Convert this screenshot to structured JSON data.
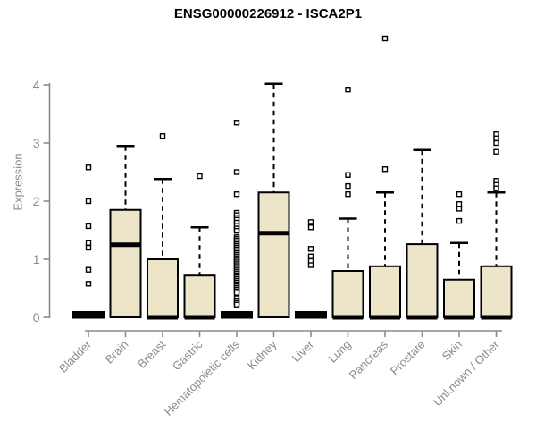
{
  "chart_data": {
    "type": "boxplot",
    "title": "ENSG00000226912 - ISCA2P1",
    "ylabel": "Expression",
    "xlabel": "",
    "ylim": [
      0,
      4
    ],
    "yticks": [
      "0",
      "1",
      "2",
      "3",
      "4"
    ],
    "grid": false,
    "legend": false,
    "colors": {
      "box_fill": "#EDE5C9",
      "box_stroke": "#000000",
      "median_color": "#000000",
      "outlier_stroke": "#000000",
      "axis": "#8A8A8A",
      "title_color": "#000000",
      "background": "#FFFFFF"
    },
    "categories": [
      "Bladder",
      "Brain",
      "Breast",
      "Gastric",
      "Hematopoietic cells",
      "Kidney",
      "Liver",
      "Lung",
      "Pancreas",
      "Prostate",
      "Skin",
      "Unknown / Other"
    ],
    "boxes": [
      {
        "category": "Bladder",
        "q1": 0,
        "median": 0,
        "q3": 0,
        "whisker_low": 0,
        "whisker_high": 0,
        "outliers": [
          2.58,
          2.0,
          1.57,
          1.28,
          1.2,
          0.82,
          0.58
        ]
      },
      {
        "category": "Brain",
        "q1": 0,
        "median": 1.25,
        "q3": 1.85,
        "whisker_low": 0,
        "whisker_high": 2.95,
        "outliers": []
      },
      {
        "category": "Breast",
        "q1": 0,
        "median": 0,
        "q3": 1.0,
        "whisker_low": 0,
        "whisker_high": 2.38,
        "outliers": [
          3.12
        ]
      },
      {
        "category": "Gastric",
        "q1": 0,
        "median": 0,
        "q3": 0.72,
        "whisker_low": 0,
        "whisker_high": 1.55,
        "outliers": [
          2.43
        ]
      },
      {
        "category": "Hematopoietic cells",
        "q1": 0,
        "median": 0,
        "q3": 0,
        "whisker_low": 0,
        "whisker_high": 0,
        "outliers": [
          3.35,
          2.5,
          2.12,
          1.8,
          1.76,
          1.72,
          1.68,
          1.63,
          1.58,
          1.53,
          1.49,
          1.38,
          1.35,
          1.32,
          1.29,
          1.26,
          1.23,
          1.2,
          1.17,
          1.14,
          1.11,
          1.08,
          1.05,
          1.02,
          0.99,
          0.96,
          0.93,
          0.9,
          0.87,
          0.84,
          0.81,
          0.78,
          0.75,
          0.72,
          0.69,
          0.66,
          0.63,
          0.6,
          0.57,
          0.54,
          0.51,
          0.48,
          0.45,
          0.42,
          0.33,
          0.29,
          0.25,
          0.22
        ]
      },
      {
        "category": "Kidney",
        "q1": 0,
        "median": 1.45,
        "q3": 2.15,
        "whisker_low": 0,
        "whisker_high": 4.02,
        "outliers": []
      },
      {
        "category": "Liver",
        "q1": 0,
        "median": 0,
        "q3": 0,
        "whisker_low": 0,
        "whisker_high": 0,
        "outliers": [
          1.64,
          1.55,
          1.18,
          1.05,
          0.97,
          0.9
        ]
      },
      {
        "category": "Lung",
        "q1": 0,
        "median": 0,
        "q3": 0.8,
        "whisker_low": 0,
        "whisker_high": 1.7,
        "outliers": [
          3.92,
          2.45,
          2.26,
          2.12
        ]
      },
      {
        "category": "Pancreas",
        "q1": 0,
        "median": 0,
        "q3": 0.88,
        "whisker_low": 0,
        "whisker_high": 2.15,
        "outliers": [
          4.8,
          2.55
        ]
      },
      {
        "category": "Prostate",
        "q1": 0,
        "median": 0,
        "q3": 1.26,
        "whisker_low": 0,
        "whisker_high": 2.88,
        "outliers": []
      },
      {
        "category": "Skin",
        "q1": 0,
        "median": 0,
        "q3": 0.65,
        "whisker_low": 0,
        "whisker_high": 1.28,
        "outliers": [
          2.12,
          1.95,
          1.87,
          1.66
        ]
      },
      {
        "category": "Unknown / Other",
        "q1": 0,
        "median": 0,
        "q3": 0.88,
        "whisker_low": 0,
        "whisker_high": 2.15,
        "outliers": [
          3.15,
          3.08,
          3.0,
          2.85,
          2.35,
          2.28,
          2.22
        ]
      }
    ]
  }
}
